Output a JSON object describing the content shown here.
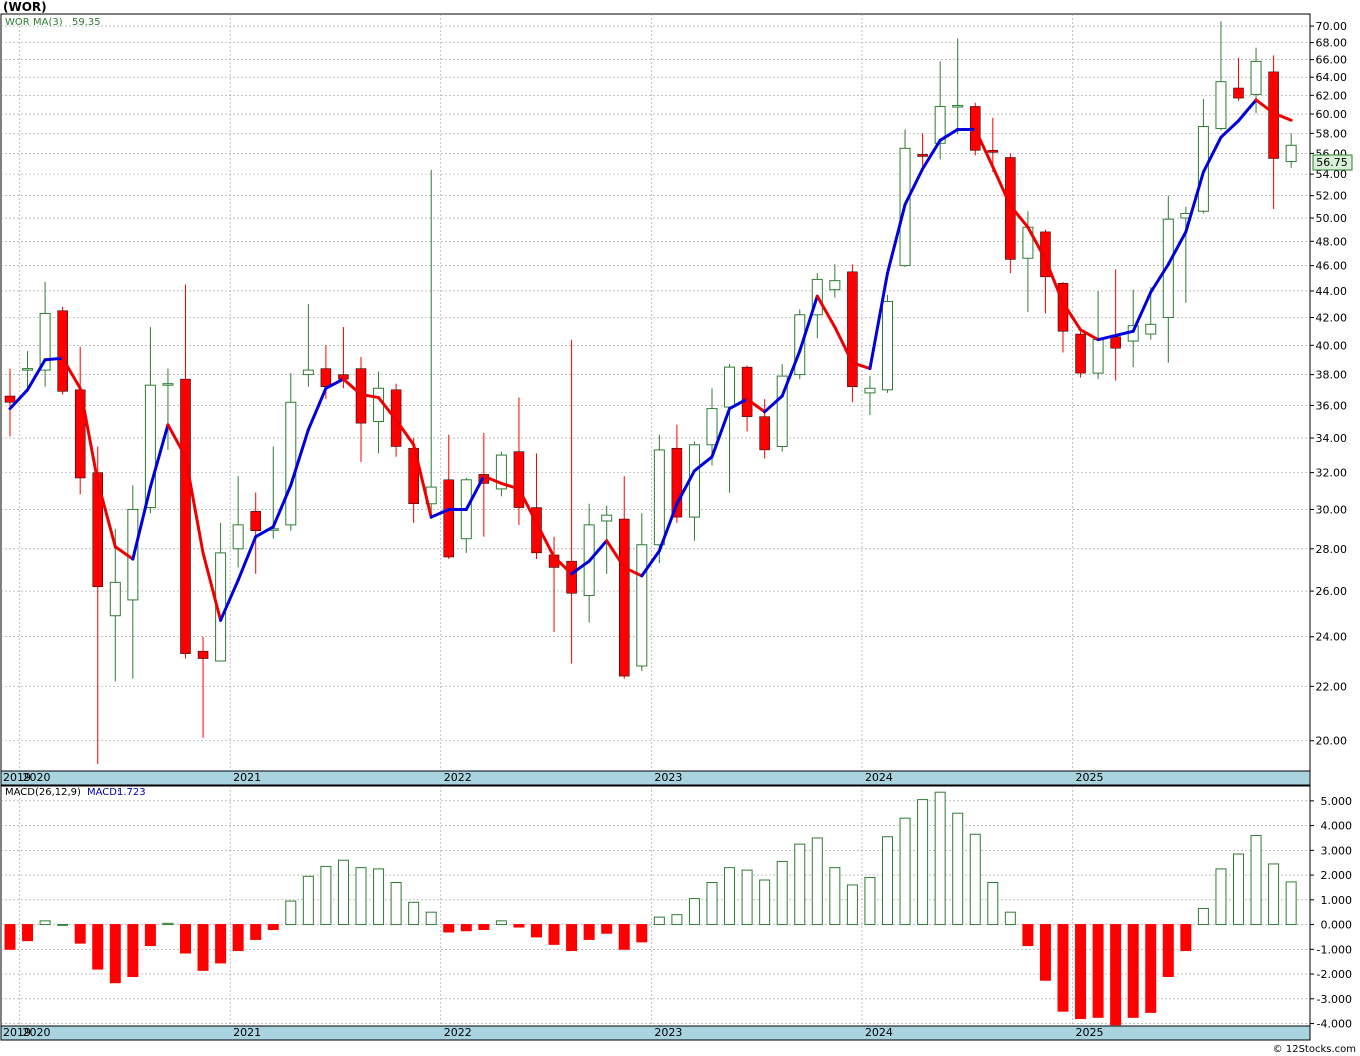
{
  "header": {
    "symbol": "(WOR)",
    "watermark": "© 12Stocks.com"
  },
  "colors": {
    "up": "#2e7d32",
    "down": "#ff0000",
    "ma_up": "#0000dd",
    "ma_down": "#ee0000",
    "axis_band": "#a8d3df",
    "price_tag": "#d8f0d8"
  },
  "chart_data": [
    {
      "type": "candlestick",
      "name": "WOR",
      "legend": {
        "symbol": "WOR",
        "indicator": "MA(3)",
        "value": "59.35"
      },
      "last_price": "56.75",
      "scale": "log",
      "ylim": [
        19.0,
        71.5
      ],
      "yticks": [
        "70.00",
        "68.00",
        "66.00",
        "64.00",
        "62.00",
        "60.00",
        "58.00",
        "56.00",
        "54.00",
        "52.00",
        "50.00",
        "48.00",
        "46.00",
        "44.00",
        "42.00",
        "40.00",
        "38.00",
        "36.00",
        "34.00",
        "32.00",
        "30.00",
        "28.00",
        "26.00",
        "24.00",
        "22.00",
        "20.00"
      ],
      "x_labels": [
        "2019",
        "2020",
        "2021",
        "2022",
        "2023",
        "2024",
        "2025"
      ],
      "x_label_months": [
        -2,
        1,
        13,
        25,
        37,
        49,
        61
      ],
      "month_index_note": "month index 0 = Dec 2019",
      "grid": true,
      "candles": [
        {
          "m": 0,
          "o": 36.6,
          "h": 38.4,
          "l": 34.1,
          "c": 36.2
        },
        {
          "m": 1,
          "o": 38.3,
          "h": 39.6,
          "l": 37.1,
          "c": 38.4
        },
        {
          "m": 2,
          "o": 38.3,
          "h": 44.7,
          "l": 37.2,
          "c": 42.3
        },
        {
          "m": 3,
          "o": 42.5,
          "h": 42.8,
          "l": 36.7,
          "c": 36.9
        },
        {
          "m": 4,
          "o": 37.0,
          "h": 39.9,
          "l": 30.8,
          "c": 31.7
        },
        {
          "m": 5,
          "o": 32.0,
          "h": 33.5,
          "l": 19.2,
          "c": 26.2
        },
        {
          "m": 6,
          "o": 24.9,
          "h": 29.0,
          "l": 22.2,
          "c": 26.4
        },
        {
          "m": 7,
          "o": 25.6,
          "h": 31.3,
          "l": 22.3,
          "c": 30.0
        },
        {
          "m": 8,
          "o": 30.1,
          "h": 41.3,
          "l": 29.8,
          "c": 37.3
        },
        {
          "m": 9,
          "o": 37.3,
          "h": 38.4,
          "l": 33.3,
          "c": 37.4
        },
        {
          "m": 10,
          "o": 37.7,
          "h": 44.5,
          "l": 23.1,
          "c": 23.3
        },
        {
          "m": 11,
          "o": 23.4,
          "h": 24.0,
          "l": 20.1,
          "c": 23.1
        },
        {
          "m": 12,
          "o": 23.0,
          "h": 29.3,
          "l": 23.0,
          "c": 27.8
        },
        {
          "m": 13,
          "o": 28.0,
          "h": 31.8,
          "l": 27.1,
          "c": 29.2
        },
        {
          "m": 14,
          "o": 29.9,
          "h": 30.9,
          "l": 26.8,
          "c": 28.9
        },
        {
          "m": 15,
          "o": 29.0,
          "h": 33.5,
          "l": 28.5,
          "c": 29.0
        },
        {
          "m": 16,
          "o": 29.2,
          "h": 38.1,
          "l": 28.9,
          "c": 36.2
        },
        {
          "m": 17,
          "o": 38.0,
          "h": 43.0,
          "l": 37.2,
          "c": 38.3
        },
        {
          "m": 18,
          "o": 38.4,
          "h": 40.0,
          "l": 36.4,
          "c": 37.2
        },
        {
          "m": 19,
          "o": 38.0,
          "h": 41.3,
          "l": 37.1,
          "c": 37.7
        },
        {
          "m": 20,
          "o": 38.4,
          "h": 39.2,
          "l": 32.6,
          "c": 34.9
        },
        {
          "m": 21,
          "o": 35.0,
          "h": 38.2,
          "l": 33.1,
          "c": 37.1
        },
        {
          "m": 22,
          "o": 37.0,
          "h": 37.4,
          "l": 32.9,
          "c": 33.5
        },
        {
          "m": 23,
          "o": 33.4,
          "h": 34.0,
          "l": 29.3,
          "c": 30.3
        },
        {
          "m": 24,
          "o": 30.3,
          "h": 54.4,
          "l": 29.5,
          "c": 31.2
        },
        {
          "m": 25,
          "o": 31.6,
          "h": 34.2,
          "l": 27.5,
          "c": 27.6
        },
        {
          "m": 26,
          "o": 28.5,
          "h": 31.7,
          "l": 27.8,
          "c": 31.6
        },
        {
          "m": 27,
          "o": 31.9,
          "h": 34.3,
          "l": 28.6,
          "c": 31.4
        },
        {
          "m": 28,
          "o": 31.1,
          "h": 33.2,
          "l": 30.7,
          "c": 33.0
        },
        {
          "m": 29,
          "o": 33.2,
          "h": 36.5,
          "l": 29.2,
          "c": 30.1
        },
        {
          "m": 30,
          "o": 30.1,
          "h": 33.1,
          "l": 27.5,
          "c": 27.8
        },
        {
          "m": 31,
          "o": 27.7,
          "h": 28.6,
          "l": 24.2,
          "c": 27.1
        },
        {
          "m": 32,
          "o": 27.4,
          "h": 40.4,
          "l": 22.9,
          "c": 25.9
        },
        {
          "m": 33,
          "o": 25.8,
          "h": 30.3,
          "l": 24.6,
          "c": 29.2
        },
        {
          "m": 34,
          "o": 29.4,
          "h": 30.2,
          "l": 26.8,
          "c": 29.7
        },
        {
          "m": 35,
          "o": 29.5,
          "h": 31.8,
          "l": 22.3,
          "c": 22.4
        },
        {
          "m": 36,
          "o": 22.8,
          "h": 29.8,
          "l": 22.6,
          "c": 28.2
        },
        {
          "m": 37,
          "o": 28.2,
          "h": 34.2,
          "l": 27.3,
          "c": 33.3
        },
        {
          "m": 38,
          "o": 33.4,
          "h": 34.8,
          "l": 29.3,
          "c": 29.6
        },
        {
          "m": 39,
          "o": 29.6,
          "h": 33.8,
          "l": 28.4,
          "c": 33.6
        },
        {
          "m": 40,
          "o": 33.6,
          "h": 37.1,
          "l": 32.4,
          "c": 35.8
        },
        {
          "m": 41,
          "o": 35.9,
          "h": 38.7,
          "l": 30.9,
          "c": 38.5
        },
        {
          "m": 42,
          "o": 38.5,
          "h": 38.6,
          "l": 34.4,
          "c": 35.3
        },
        {
          "m": 43,
          "o": 35.3,
          "h": 36.4,
          "l": 32.8,
          "c": 33.3
        },
        {
          "m": 44,
          "o": 33.5,
          "h": 38.7,
          "l": 33.2,
          "c": 37.9
        },
        {
          "m": 45,
          "o": 38.0,
          "h": 42.6,
          "l": 37.7,
          "c": 42.2
        },
        {
          "m": 46,
          "o": 42.2,
          "h": 45.4,
          "l": 40.5,
          "c": 44.9
        },
        {
          "m": 47,
          "o": 44.1,
          "h": 46.1,
          "l": 43.5,
          "c": 44.8
        },
        {
          "m": 48,
          "o": 45.5,
          "h": 46.1,
          "l": 36.2,
          "c": 37.2
        },
        {
          "m": 49,
          "o": 36.8,
          "h": 37.9,
          "l": 35.4,
          "c": 37.1
        },
        {
          "m": 50,
          "o": 37.0,
          "h": 43.7,
          "l": 36.8,
          "c": 43.2
        },
        {
          "m": 51,
          "o": 46.0,
          "h": 58.4,
          "l": 45.9,
          "c": 56.5
        },
        {
          "m": 52,
          "o": 55.9,
          "h": 58.0,
          "l": 54.2,
          "c": 55.7
        },
        {
          "m": 53,
          "o": 57.0,
          "h": 65.8,
          "l": 55.4,
          "c": 60.8
        },
        {
          "m": 54,
          "o": 60.8,
          "h": 68.5,
          "l": 57.9,
          "c": 60.9
        },
        {
          "m": 55,
          "o": 60.8,
          "h": 61.2,
          "l": 55.8,
          "c": 56.3
        },
        {
          "m": 56,
          "o": 56.3,
          "h": 59.6,
          "l": 54.2,
          "c": 56.1
        },
        {
          "m": 57,
          "o": 55.6,
          "h": 56.0,
          "l": 45.4,
          "c": 46.5
        },
        {
          "m": 58,
          "o": 46.6,
          "h": 50.6,
          "l": 42.4,
          "c": 49.2
        },
        {
          "m": 59,
          "o": 48.8,
          "h": 49.0,
          "l": 42.3,
          "c": 45.1
        },
        {
          "m": 60,
          "o": 44.6,
          "h": 44.7,
          "l": 39.5,
          "c": 41.0
        },
        {
          "m": 61,
          "o": 40.8,
          "h": 41.2,
          "l": 37.8,
          "c": 38.1
        },
        {
          "m": 62,
          "o": 38.1,
          "h": 44.0,
          "l": 37.7,
          "c": 40.4
        },
        {
          "m": 63,
          "o": 40.6,
          "h": 45.7,
          "l": 37.6,
          "c": 39.8
        },
        {
          "m": 64,
          "o": 40.3,
          "h": 44.1,
          "l": 38.5,
          "c": 41.4
        },
        {
          "m": 65,
          "o": 40.8,
          "h": 44.3,
          "l": 40.4,
          "c": 41.5
        },
        {
          "m": 66,
          "o": 42.0,
          "h": 52.0,
          "l": 38.8,
          "c": 49.9
        },
        {
          "m": 67,
          "o": 50.0,
          "h": 51.0,
          "l": 43.1,
          "c": 50.4
        },
        {
          "m": 68,
          "o": 50.6,
          "h": 61.6,
          "l": 50.4,
          "c": 58.7
        },
        {
          "m": 69,
          "o": 58.5,
          "h": 70.6,
          "l": 58.3,
          "c": 63.5
        },
        {
          "m": 70,
          "o": 62.8,
          "h": 66.2,
          "l": 61.4,
          "c": 61.7
        },
        {
          "m": 71,
          "o": 62.1,
          "h": 67.4,
          "l": 60.1,
          "c": 65.8
        },
        {
          "m": 72,
          "o": 64.6,
          "h": 66.5,
          "l": 50.8,
          "c": 55.5
        },
        {
          "m": 73,
          "o": 55.2,
          "h": 58.0,
          "l": 54.6,
          "c": 56.8
        }
      ],
      "ma3": [
        {
          "m": 0,
          "v": 35.8
        },
        {
          "m": 1,
          "v": 37.0
        },
        {
          "m": 2,
          "v": 39.0
        },
        {
          "m": 3,
          "v": 39.1
        },
        {
          "m": 4,
          "v": 37.1
        },
        {
          "m": 5,
          "v": 31.5
        },
        {
          "m": 6,
          "v": 28.1
        },
        {
          "m": 7,
          "v": 27.5
        },
        {
          "m": 8,
          "v": 31.2
        },
        {
          "m": 9,
          "v": 34.8
        },
        {
          "m": 10,
          "v": 32.9
        },
        {
          "m": 11,
          "v": 27.8
        },
        {
          "m": 12,
          "v": 24.7
        },
        {
          "m": 13,
          "v": 26.5
        },
        {
          "m": 14,
          "v": 28.6
        },
        {
          "m": 15,
          "v": 29.1
        },
        {
          "m": 16,
          "v": 31.3
        },
        {
          "m": 17,
          "v": 34.5
        },
        {
          "m": 18,
          "v": 37.1
        },
        {
          "m": 19,
          "v": 37.7
        },
        {
          "m": 20,
          "v": 36.7
        },
        {
          "m": 21,
          "v": 36.5
        },
        {
          "m": 22,
          "v": 35.1
        },
        {
          "m": 23,
          "v": 33.6
        },
        {
          "m": 24,
          "v": 29.6
        },
        {
          "m": 25,
          "v": 30.0
        },
        {
          "m": 26,
          "v": 30.0
        },
        {
          "m": 27,
          "v": 31.8
        },
        {
          "m": 28,
          "v": 31.4
        },
        {
          "m": 29,
          "v": 31.1
        },
        {
          "m": 30,
          "v": 29.3
        },
        {
          "m": 31,
          "v": 27.6
        },
        {
          "m": 32,
          "v": 26.8
        },
        {
          "m": 33,
          "v": 27.4
        },
        {
          "m": 34,
          "v": 28.4
        },
        {
          "m": 35,
          "v": 27.1
        },
        {
          "m": 36,
          "v": 26.7
        },
        {
          "m": 37,
          "v": 27.9
        },
        {
          "m": 38,
          "v": 30.3
        },
        {
          "m": 39,
          "v": 32.1
        },
        {
          "m": 40,
          "v": 32.9
        },
        {
          "m": 41,
          "v": 35.8
        },
        {
          "m": 42,
          "v": 36.4
        },
        {
          "m": 43,
          "v": 35.6
        },
        {
          "m": 44,
          "v": 36.6
        },
        {
          "m": 45,
          "v": 39.6
        },
        {
          "m": 46,
          "v": 43.6
        },
        {
          "m": 47,
          "v": 41.3
        },
        {
          "m": 48,
          "v": 38.8
        },
        {
          "m": 49,
          "v": 38.4
        },
        {
          "m": 50,
          "v": 45.4
        },
        {
          "m": 51,
          "v": 51.2
        },
        {
          "m": 52,
          "v": 54.5
        },
        {
          "m": 53,
          "v": 57.3
        },
        {
          "m": 54,
          "v": 58.4
        },
        {
          "m": 55,
          "v": 58.4
        },
        {
          "m": 56,
          "v": 54.7
        },
        {
          "m": 57,
          "v": 51.1
        },
        {
          "m": 58,
          "v": 49.2
        },
        {
          "m": 59,
          "v": 46.5
        },
        {
          "m": 60,
          "v": 43.1
        },
        {
          "m": 61,
          "v": 41.1
        },
        {
          "m": 62,
          "v": 40.4
        },
        {
          "m": 63,
          "v": 40.7
        },
        {
          "m": 64,
          "v": 41.0
        },
        {
          "m": 65,
          "v": 43.9
        },
        {
          "m": 66,
          "v": 46.1
        },
        {
          "m": 67,
          "v": 48.8
        },
        {
          "m": 68,
          "v": 54.2
        },
        {
          "m": 69,
          "v": 57.6
        },
        {
          "m": 70,
          "v": 59.3
        },
        {
          "m": 71,
          "v": 61.5
        },
        {
          "m": 72,
          "v": 60.1
        },
        {
          "m": 73,
          "v": 59.35
        }
      ]
    },
    {
      "type": "bar",
      "name": "MACD(26,12,9)",
      "legend": {
        "indicator": "MACD(26,12,9)",
        "label": "MACD:",
        "value": "1.723"
      },
      "ylim": [
        -4.1,
        5.6
      ],
      "yticks": [
        "5.000",
        "4.000",
        "3.000",
        "2.000",
        "1.000",
        "0.000",
        "-1.000",
        "-2.000",
        "-3.000",
        "-4.000"
      ],
      "x_labels": [
        "2019",
        "2020",
        "2021",
        "2022",
        "2023",
        "2024",
        "2025"
      ],
      "values": [
        -1.0,
        -0.65,
        0.15,
        0.0,
        -0.75,
        -1.8,
        -2.35,
        -2.1,
        -0.85,
        0.05,
        -1.15,
        -1.85,
        -1.55,
        -1.05,
        -0.6,
        -0.2,
        0.95,
        1.95,
        2.35,
        2.6,
        2.3,
        2.25,
        1.7,
        0.9,
        0.5,
        -0.3,
        -0.25,
        -0.2,
        0.15,
        -0.1,
        -0.5,
        -0.8,
        -1.05,
        -0.6,
        -0.35,
        -1.0,
        -0.7,
        0.3,
        0.4,
        1.05,
        1.7,
        2.3,
        2.2,
        1.8,
        2.55,
        3.25,
        3.5,
        2.3,
        1.6,
        1.9,
        3.55,
        4.3,
        5.05,
        5.35,
        4.5,
        3.65,
        1.7,
        0.5,
        -0.85,
        -2.25,
        -3.5,
        -3.8,
        -3.75,
        -4.05,
        -3.75,
        -3.55,
        -2.1,
        -1.05,
        0.65,
        2.25,
        2.85,
        3.6,
        2.45,
        1.723
      ]
    }
  ]
}
